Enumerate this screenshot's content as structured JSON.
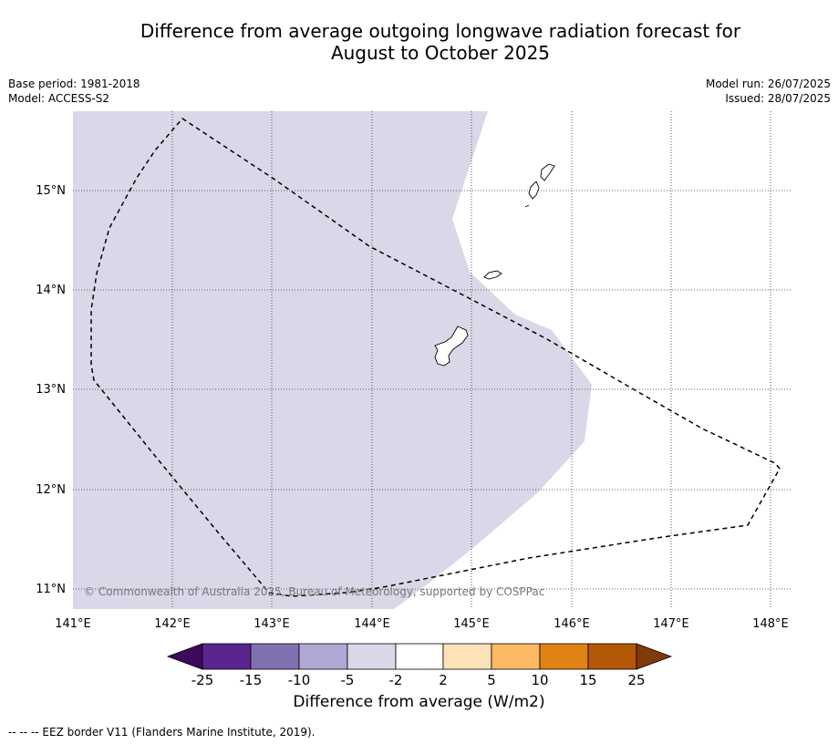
{
  "title": {
    "line1": "Difference from average outgoing longwave radiation forecast for",
    "line2": "August to October 2025"
  },
  "meta": {
    "base_period": "Base period: 1981-2018",
    "model": "Model: ACCESS-S2",
    "model_run": "Model run: 26/07/2025",
    "issued": "Issued: 28/07/2025"
  },
  "map": {
    "lon_ticks": [
      "141°E",
      "142°E",
      "143°E",
      "144°E",
      "145°E",
      "146°E",
      "147°E",
      "148°E"
    ],
    "lat_ticks": [
      "15°N",
      "14°N",
      "13°N",
      "12°N",
      "11°N"
    ],
    "copyright": "© Commonwealth of Australia 2025, Bureau of Meteorology, supported by COSPPac",
    "anomaly_region_category": "-5 to -2",
    "colors": {
      "anomaly_fill": "#d8d8e8",
      "grid": "#333333"
    }
  },
  "colorbar": {
    "tick_labels": [
      "-25",
      "-15",
      "-10",
      "-5",
      "-2",
      "2",
      "5",
      "10",
      "15",
      "25"
    ],
    "colors": [
      "#3d0a5c",
      "#5b2590",
      "#8070b0",
      "#b0a8d2",
      "#d8d8e8",
      "#ffffff",
      "#fde2b8",
      "#fdb863",
      "#e08214",
      "#b35806",
      "#7f3b08"
    ],
    "label": "Difference from average (W/m2)"
  },
  "footnote": "--  --  -- EEZ border V11 (Flanders Marine Institute, 2019)."
}
